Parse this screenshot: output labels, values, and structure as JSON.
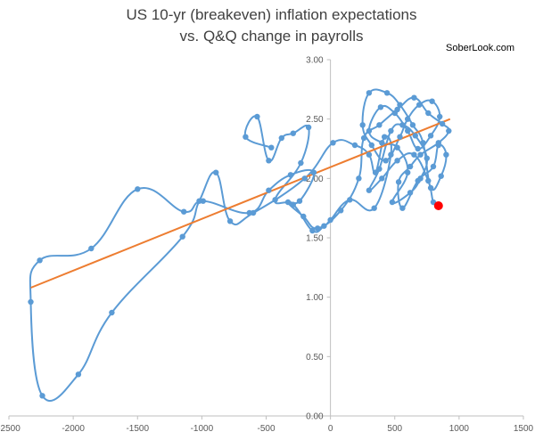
{
  "chart_data": {
    "type": "scatter",
    "title_lines": [
      "US 10-yr (breakeven) inflation expectations",
      "vs. Q&Q change in payrolls"
    ],
    "source_label": "SoberLook.com",
    "xlabel": "",
    "ylabel": "",
    "xlim": [
      -2500,
      1500
    ],
    "ylim": [
      0.0,
      3.0
    ],
    "xticks": [
      "-2500",
      "-2000",
      "-1500",
      "-1000",
      "-500",
      "0",
      "500",
      "1000",
      "1500"
    ],
    "yticks": [
      "0.00",
      "0.50",
      "1.00",
      "1.50",
      "2.00",
      "2.50",
      "3.00"
    ],
    "grid": false,
    "colors": {
      "series": "#5b9bd5",
      "trend": "#ed7d31",
      "latest": "#ff0000"
    },
    "series": [
      {
        "type": "smooth-line-markers",
        "points": [
          [
            -460,
            2.26
          ],
          [
            -660,
            2.35
          ],
          [
            -570,
            2.52
          ],
          [
            -480,
            2.15
          ],
          [
            -380,
            2.34
          ],
          [
            -290,
            2.38
          ],
          [
            -170,
            2.43
          ],
          [
            -230,
            2.13
          ],
          [
            -430,
            1.82
          ],
          [
            -290,
            1.78
          ],
          [
            -140,
            1.56
          ],
          [
            -50,
            1.6
          ],
          [
            0,
            1.65
          ],
          [
            150,
            1.82
          ],
          [
            340,
            1.75
          ],
          [
            470,
            2.2
          ],
          [
            420,
            2.35
          ],
          [
            350,
            2.05
          ],
          [
            300,
            2.2
          ],
          [
            190,
            2.28
          ],
          [
            20,
            2.3
          ],
          [
            -200,
            2.0
          ],
          [
            -600,
            1.71
          ],
          [
            -780,
            1.64
          ],
          [
            -890,
            2.05
          ],
          [
            -1020,
            1.81
          ],
          [
            -1150,
            1.51
          ],
          [
            -1700,
            0.87
          ],
          [
            -1960,
            0.35
          ],
          [
            -2240,
            0.17
          ],
          [
            -2330,
            0.96
          ],
          [
            -2260,
            1.31
          ],
          [
            -1860,
            1.41
          ],
          [
            -1500,
            1.91
          ],
          [
            -1140,
            1.72
          ],
          [
            -990,
            1.81
          ],
          [
            -630,
            1.71
          ],
          [
            -480,
            1.9
          ],
          [
            -310,
            2.03
          ],
          [
            -130,
            2.05
          ],
          [
            -240,
            1.81
          ],
          [
            -330,
            1.8
          ],
          [
            -210,
            1.68
          ],
          [
            -100,
            1.58
          ],
          [
            80,
            1.73
          ],
          [
            220,
            2.0
          ],
          [
            260,
            2.34
          ],
          [
            380,
            2.45
          ],
          [
            520,
            2.58
          ],
          [
            650,
            2.68
          ],
          [
            760,
            2.55
          ],
          [
            870,
            2.46
          ],
          [
            920,
            2.4
          ],
          [
            840,
            2.3
          ],
          [
            700,
            2.2
          ],
          [
            620,
            2.1
          ],
          [
            530,
            1.97
          ],
          [
            560,
            1.75
          ],
          [
            680,
            1.98
          ],
          [
            800,
            2.1
          ],
          [
            840,
            2.28
          ],
          [
            900,
            2.2
          ],
          [
            860,
            2.02
          ],
          [
            780,
            1.92
          ],
          [
            720,
            2.3
          ],
          [
            640,
            2.45
          ],
          [
            540,
            2.62
          ],
          [
            440,
            2.72
          ],
          [
            300,
            2.72
          ],
          [
            250,
            2.45
          ],
          [
            320,
            2.28
          ],
          [
            430,
            2.15
          ],
          [
            540,
            2.35
          ],
          [
            600,
            2.5
          ],
          [
            690,
            2.62
          ],
          [
            790,
            2.65
          ],
          [
            850,
            2.52
          ],
          [
            780,
            2.36
          ],
          [
            680,
            2.25
          ],
          [
            600,
            2.4
          ],
          [
            500,
            2.55
          ],
          [
            390,
            2.6
          ],
          [
            300,
            2.4
          ],
          [
            400,
            2.3
          ],
          [
            520,
            2.26
          ],
          [
            600,
            2.05
          ],
          [
            480,
            1.8
          ],
          [
            620,
            1.88
          ],
          [
            700,
            2.0
          ],
          [
            750,
            2.17
          ],
          [
            660,
            2.36
          ],
          [
            560,
            2.45
          ],
          [
            470,
            2.4
          ],
          [
            380,
            2.08
          ],
          [
            300,
            1.9
          ],
          [
            400,
            2.0
          ],
          [
            520,
            2.15
          ],
          [
            650,
            2.2
          ],
          [
            760,
            1.98
          ],
          [
            800,
            1.8
          ]
        ]
      }
    ],
    "latest_point": [
      840,
      1.77
    ],
    "trendline": {
      "x0": -2330,
      "y0": 1.08,
      "x1": 930,
      "y1": 2.5
    }
  }
}
